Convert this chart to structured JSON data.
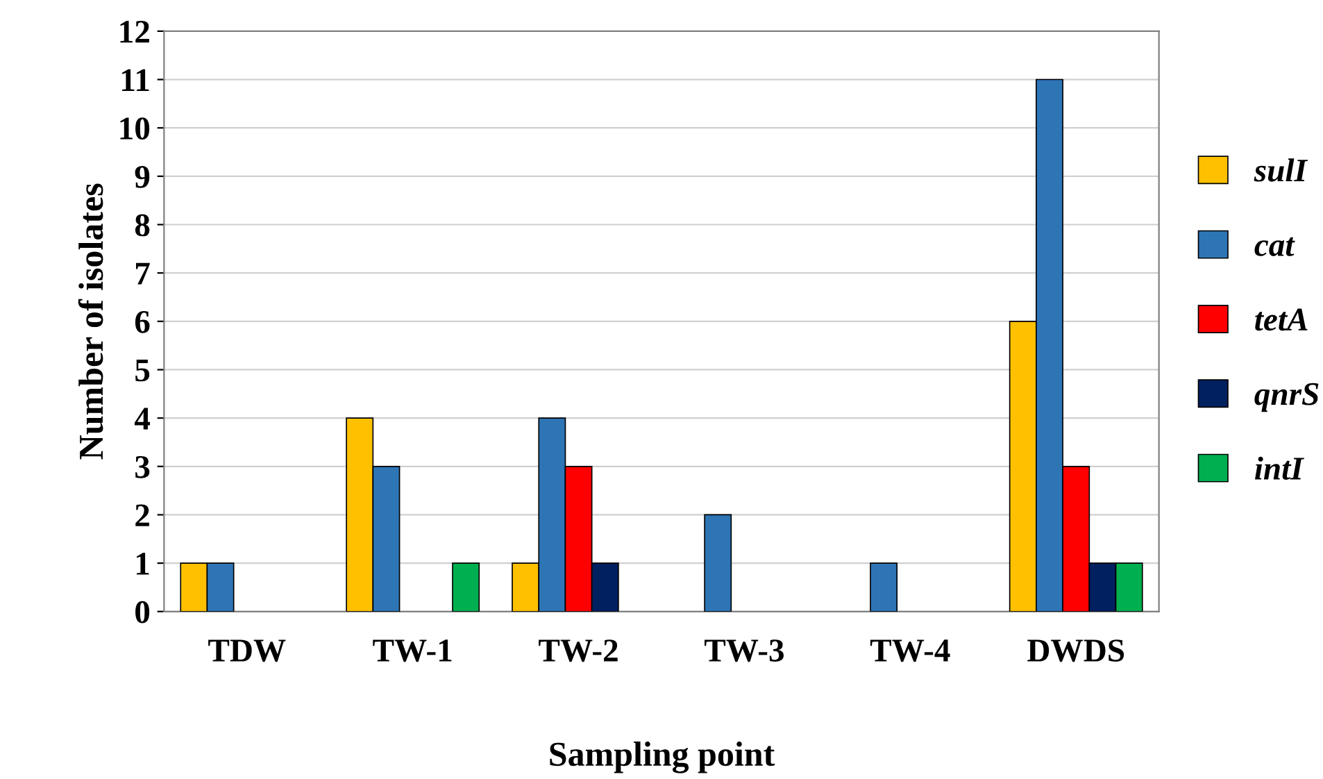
{
  "chart_data": {
    "type": "bar",
    "xlabel": "Sampling point",
    "ylabel": "Number of isolates",
    "categories": [
      "TDW",
      "TW-1",
      "TW-2",
      "TW-3",
      "TW-4",
      "DWDS"
    ],
    "series": [
      {
        "name": "sulI",
        "color": "#ffc000",
        "values": [
          1,
          4,
          1,
          0,
          0,
          6
        ]
      },
      {
        "name": "cat",
        "color": "#2e75b6",
        "values": [
          1,
          3,
          4,
          2,
          1,
          11
        ]
      },
      {
        "name": "tetA",
        "color": "#ff0000",
        "values": [
          0,
          0,
          3,
          0,
          0,
          3
        ]
      },
      {
        "name": "qnrS",
        "color": "#002060",
        "values": [
          0,
          0,
          1,
          0,
          0,
          1
        ]
      },
      {
        "name": "intI",
        "color": "#00b050",
        "values": [
          0,
          1,
          0,
          0,
          0,
          1
        ]
      }
    ],
    "ylim": [
      0,
      12
    ],
    "yticks": [
      0,
      1,
      2,
      3,
      4,
      5,
      6,
      7,
      8,
      9,
      10,
      11,
      12
    ],
    "grid": "y",
    "legend": "right"
  }
}
